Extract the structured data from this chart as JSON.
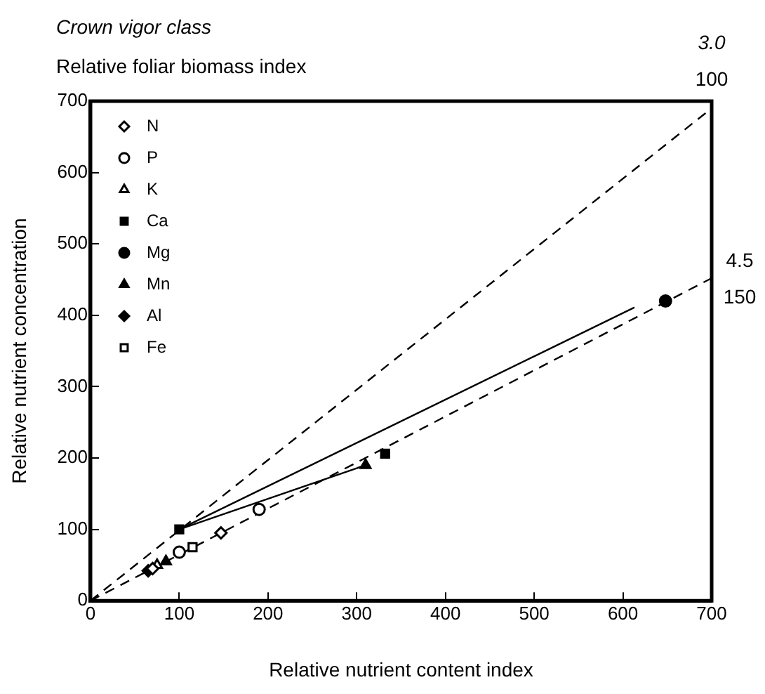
{
  "chart_data": {
    "type": "scatter",
    "title": "Crown vigor class",
    "subtitle": "Relative foliar biomass index",
    "xlabel": "Relative nutrient content index",
    "ylabel": "Relative nutrient concentration",
    "xlim": [
      0,
      700
    ],
    "xticks": [
      0,
      100,
      200,
      300,
      400,
      500,
      600,
      700
    ],
    "ylim": [
      0,
      700
    ],
    "yticks": [
      0,
      100,
      200,
      300,
      400,
      500,
      600,
      700
    ],
    "grid": false,
    "legend": "top left",
    "series": [
      {
        "name": "N",
        "color": "#ffffff",
        "marker": "diamond",
        "x": [
          70,
          147
        ],
        "values": [
          45,
          95
        ]
      },
      {
        "name": "P",
        "color": "#ffffff",
        "marker": "circle",
        "x": [
          100,
          190
        ],
        "values": [
          68,
          128
        ]
      },
      {
        "name": "K",
        "color": "#ffffff",
        "marker": "triangle",
        "x": [
          75
        ],
        "values": [
          50
        ]
      },
      {
        "name": "Ca",
        "color": "#000000",
        "marker": "square",
        "x": [
          100,
          332
        ],
        "values": [
          100,
          206
        ]
      },
      {
        "name": "Mg",
        "color": "#000000",
        "marker": "circle",
        "x": [
          648
        ],
        "values": [
          420
        ]
      },
      {
        "name": "Mn",
        "color": "#000000",
        "marker": "triangle",
        "x": [
          85,
          310
        ],
        "values": [
          55,
          190
        ]
      },
      {
        "name": "Al",
        "color": "#000000",
        "marker": "diamond",
        "x": [
          65
        ],
        "values": [
          42
        ]
      },
      {
        "name": "Fe",
        "color": "#ffffff",
        "marker": "square",
        "x": [
          115
        ],
        "values": [
          75
        ]
      },
      {
        "type": "line",
        "color": "#000000",
        "line_style": "dashed",
        "marker": "none",
        "x": [
          0,
          700
        ],
        "values": [
          0,
          690
        ]
      },
      {
        "type": "line",
        "color": "#000000",
        "line_style": "dashed",
        "marker": "none",
        "x": [
          0,
          700
        ],
        "values": [
          0,
          452
        ]
      },
      {
        "type": "line",
        "color": "#000000",
        "line_style": "solid",
        "marker": "none",
        "x": [
          100,
          613
        ],
        "values": [
          100,
          411
        ]
      },
      {
        "type": "line",
        "color": "#000000",
        "line_style": "solid",
        "marker": "none",
        "x": [
          100,
          310
        ],
        "values": [
          100,
          190
        ]
      }
    ],
    "annotations": [
      "3.0",
      "100",
      "4.5",
      "150"
    ]
  }
}
